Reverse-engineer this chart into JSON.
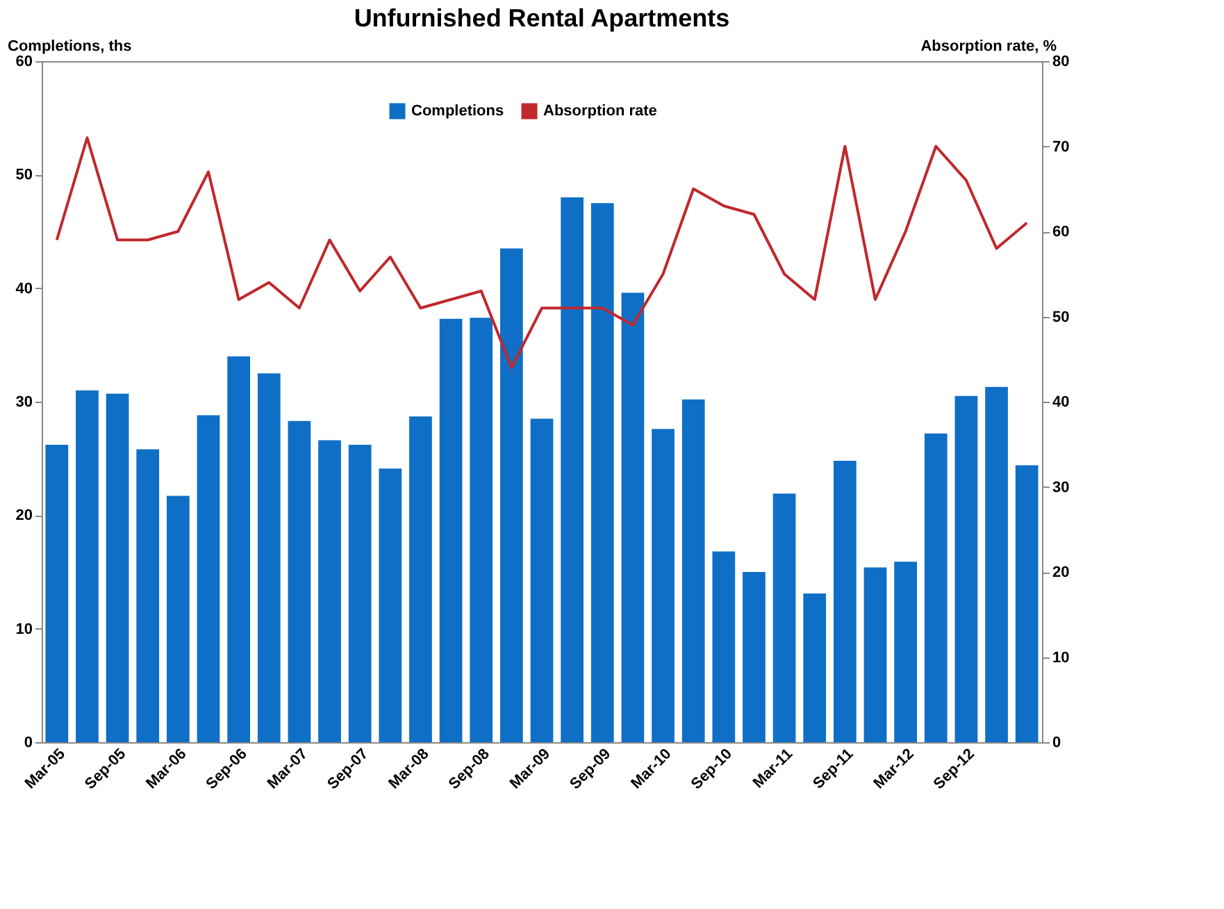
{
  "chart_data": {
    "type": "bar",
    "title": "Unfurnished Rental Apartments",
    "ylabel": "Completions, ths",
    "y2label": "Absorption rate, %",
    "categories": [
      "Mar-05",
      null,
      "Sep-05",
      null,
      "Mar-06",
      null,
      "Sep-06",
      null,
      "Mar-07",
      null,
      "Sep-07",
      null,
      "Mar-08",
      null,
      "Sep-08",
      null,
      "Mar-09",
      null,
      "Sep-09",
      null,
      "Mar-10",
      null,
      "Sep-10",
      null,
      "Mar-11",
      null,
      "Sep-11",
      null,
      "Mar-12",
      null,
      "Sep-12",
      null,
      null
    ],
    "series": [
      {
        "name": "Completions",
        "color": "#0f6fc6",
        "values": [
          26.2,
          31,
          30.7,
          25.8,
          21.7,
          28.8,
          34,
          32.5,
          28.3,
          26.6,
          26.2,
          24.1,
          28.7,
          37.3,
          37.4,
          43.5,
          28.5,
          48,
          47.5,
          39.6,
          27.6,
          30.2,
          16.8,
          15,
          21.9,
          13.1,
          24.8,
          15.4,
          15.9,
          27.2,
          30.5,
          31.3,
          24.4
        ]
      },
      {
        "name": "Absorption rate",
        "type": "line",
        "axis": "y2",
        "color": "#c0282d",
        "values": [
          59,
          71,
          59,
          59,
          60,
          67,
          52,
          54,
          51,
          59,
          53,
          57,
          51,
          52,
          53,
          44,
          51,
          51,
          51,
          49,
          55,
          65,
          63,
          62,
          55,
          52,
          70,
          52,
          60,
          70,
          66,
          58,
          61
        ]
      }
    ],
    "ylim": [
      0,
      60
    ],
    "yticks": [
      0,
      10,
      20,
      30,
      40,
      50,
      60
    ],
    "y2lim": [
      0,
      80
    ],
    "y2ticks": [
      0,
      10,
      20,
      30,
      40,
      50,
      60,
      70,
      80
    ],
    "grid": false,
    "legend": "top",
    "marker": "none",
    "line_style": "solid"
  }
}
